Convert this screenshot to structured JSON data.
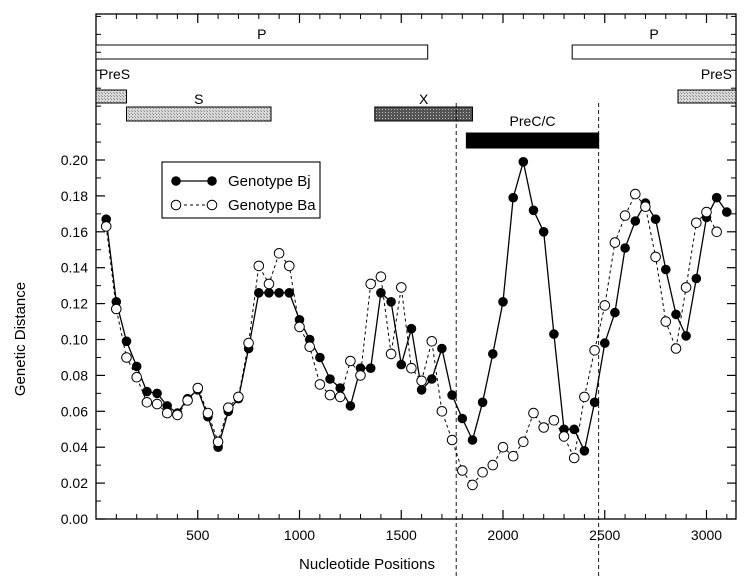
{
  "chart_data": {
    "type": "line",
    "title": "",
    "xlabel": "Nucleotide Positions",
    "ylabel": "Genetic Distance",
    "xlim": [
      0,
      3150
    ],
    "ylim": [
      0,
      0.22
    ],
    "x_ticks": [
      500,
      1000,
      1500,
      2000,
      2500,
      3000
    ],
    "x_tick_labels": [
      "500",
      "1000",
      "1500",
      "2000",
      "2500",
      "3000"
    ],
    "y_ticks": [
      0,
      0.02,
      0.04,
      0.06,
      0.08,
      0.1,
      0.12,
      0.14,
      0.16,
      0.18,
      0.2
    ],
    "y_tick_labels": [
      "0.00",
      "0.02",
      "0.04",
      "0.06",
      "0.08",
      "0.10",
      "0.12",
      "0.14",
      "0.16",
      "0.18",
      "0.20"
    ],
    "grid": false,
    "legend_position": "upper-left",
    "series": [
      {
        "name": "Genotype Bj",
        "marker": "filled-circle",
        "line": "solid",
        "points": [
          [
            50,
            0.167
          ],
          [
            100,
            0.121
          ],
          [
            150,
            0.099
          ],
          [
            200,
            0.085
          ],
          [
            250,
            0.071
          ],
          [
            300,
            0.07
          ],
          [
            350,
            0.063
          ],
          [
            400,
            0.059
          ],
          [
            450,
            0.067
          ],
          [
            500,
            0.072
          ],
          [
            550,
            0.057
          ],
          [
            600,
            0.04
          ],
          [
            650,
            0.06
          ],
          [
            700,
            0.067
          ],
          [
            750,
            0.095
          ],
          [
            800,
            0.126
          ],
          [
            850,
            0.126
          ],
          [
            900,
            0.126
          ],
          [
            950,
            0.126
          ],
          [
            1000,
            0.111
          ],
          [
            1050,
            0.1
          ],
          [
            1100,
            0.09
          ],
          [
            1150,
            0.078
          ],
          [
            1200,
            0.073
          ],
          [
            1250,
            0.063
          ],
          [
            1300,
            0.084
          ],
          [
            1350,
            0.084
          ],
          [
            1400,
            0.126
          ],
          [
            1450,
            0.121
          ],
          [
            1500,
            0.086
          ],
          [
            1550,
            0.106
          ],
          [
            1600,
            0.072
          ],
          [
            1650,
            0.078
          ],
          [
            1700,
            0.095
          ],
          [
            1750,
            0.069
          ],
          [
            1800,
            0.056
          ],
          [
            1850,
            0.044
          ],
          [
            1900,
            0.065
          ],
          [
            1950,
            0.092
          ],
          [
            2000,
            0.121
          ],
          [
            2050,
            0.179
          ],
          [
            2100,
            0.199
          ],
          [
            2150,
            0.172
          ],
          [
            2200,
            0.16
          ],
          [
            2250,
            0.103
          ],
          [
            2300,
            0.05
          ],
          [
            2350,
            0.05
          ],
          [
            2400,
            0.038
          ],
          [
            2450,
            0.065
          ],
          [
            2500,
            0.098
          ],
          [
            2550,
            0.115
          ],
          [
            2600,
            0.151
          ],
          [
            2650,
            0.166
          ],
          [
            2700,
            0.176
          ],
          [
            2750,
            0.167
          ],
          [
            2800,
            0.139
          ],
          [
            2850,
            0.114
          ],
          [
            2900,
            0.102
          ],
          [
            2950,
            0.134
          ],
          [
            3000,
            0.168
          ],
          [
            3050,
            0.179
          ],
          [
            3100,
            0.171
          ]
        ]
      },
      {
        "name": "Genotype Ba",
        "marker": "open-circle",
        "line": "dashed",
        "points": [
          [
            50,
            0.163
          ],
          [
            100,
            0.117
          ],
          [
            150,
            0.09
          ],
          [
            200,
            0.079
          ],
          [
            250,
            0.065
          ],
          [
            300,
            0.064
          ],
          [
            350,
            0.059
          ],
          [
            400,
            0.058
          ],
          [
            450,
            0.066
          ],
          [
            500,
            0.073
          ],
          [
            550,
            0.059
          ],
          [
            600,
            0.043
          ],
          [
            650,
            0.062
          ],
          [
            700,
            0.068
          ],
          [
            750,
            0.098
          ],
          [
            800,
            0.141
          ],
          [
            850,
            0.131
          ],
          [
            900,
            0.148
          ],
          [
            950,
            0.141
          ],
          [
            1000,
            0.107
          ],
          [
            1050,
            0.096
          ],
          [
            1100,
            0.075
          ],
          [
            1150,
            0.069
          ],
          [
            1200,
            0.068
          ],
          [
            1250,
            0.088
          ],
          [
            1300,
            0.08
          ],
          [
            1350,
            0.131
          ],
          [
            1400,
            0.135
          ],
          [
            1450,
            0.092
          ],
          [
            1500,
            0.129
          ],
          [
            1550,
            0.084
          ],
          [
            1600,
            0.077
          ],
          [
            1650,
            0.099
          ],
          [
            1700,
            0.06
          ],
          [
            1750,
            0.044
          ],
          [
            1800,
            0.027
          ],
          [
            1850,
            0.019
          ],
          [
            1900,
            0.026
          ],
          [
            1950,
            0.03
          ],
          [
            2000,
            0.04
          ],
          [
            2050,
            0.035
          ],
          [
            2100,
            0.043
          ],
          [
            2150,
            0.059
          ],
          [
            2200,
            0.051
          ],
          [
            2250,
            0.055
          ],
          [
            2300,
            0.046
          ],
          [
            2350,
            0.034
          ],
          [
            2400,
            0.068
          ],
          [
            2450,
            0.094
          ],
          [
            2500,
            0.119
          ],
          [
            2550,
            0.154
          ],
          [
            2600,
            0.169
          ],
          [
            2650,
            0.181
          ],
          [
            2700,
            0.174
          ],
          [
            2750,
            0.146
          ],
          [
            2800,
            0.11
          ],
          [
            2850,
            0.095
          ],
          [
            2900,
            0.129
          ],
          [
            2950,
            0.165
          ],
          [
            3000,
            0.171
          ],
          [
            3050,
            0.16
          ]
        ]
      }
    ],
    "annotations": {
      "vertical_dashed_lines": [
        1770,
        2470
      ],
      "gene_tracks": [
        {
          "name": "P",
          "label": "P",
          "style": "open",
          "row": 1,
          "start": 0,
          "end": 1630
        },
        {
          "name": "P-right",
          "label": "P",
          "style": "open",
          "row": 1,
          "start": 2340,
          "end": 3150
        },
        {
          "name": "PreS-left",
          "label": "PreS",
          "style": "light",
          "row": 2,
          "start": 0,
          "end": 150
        },
        {
          "name": "PreS-right",
          "label": "PreS",
          "style": "light",
          "row": 2,
          "start": 2860,
          "end": 3150
        },
        {
          "name": "S",
          "label": "S",
          "style": "light",
          "row": 3,
          "start": 150,
          "end": 860
        },
        {
          "name": "X",
          "label": "X",
          "style": "dark",
          "row": 3,
          "start": 1370,
          "end": 1850
        },
        {
          "name": "PreC/C",
          "label": "PreC/C",
          "style": "black",
          "row": 4,
          "start": 1820,
          "end": 2470
        }
      ]
    }
  }
}
